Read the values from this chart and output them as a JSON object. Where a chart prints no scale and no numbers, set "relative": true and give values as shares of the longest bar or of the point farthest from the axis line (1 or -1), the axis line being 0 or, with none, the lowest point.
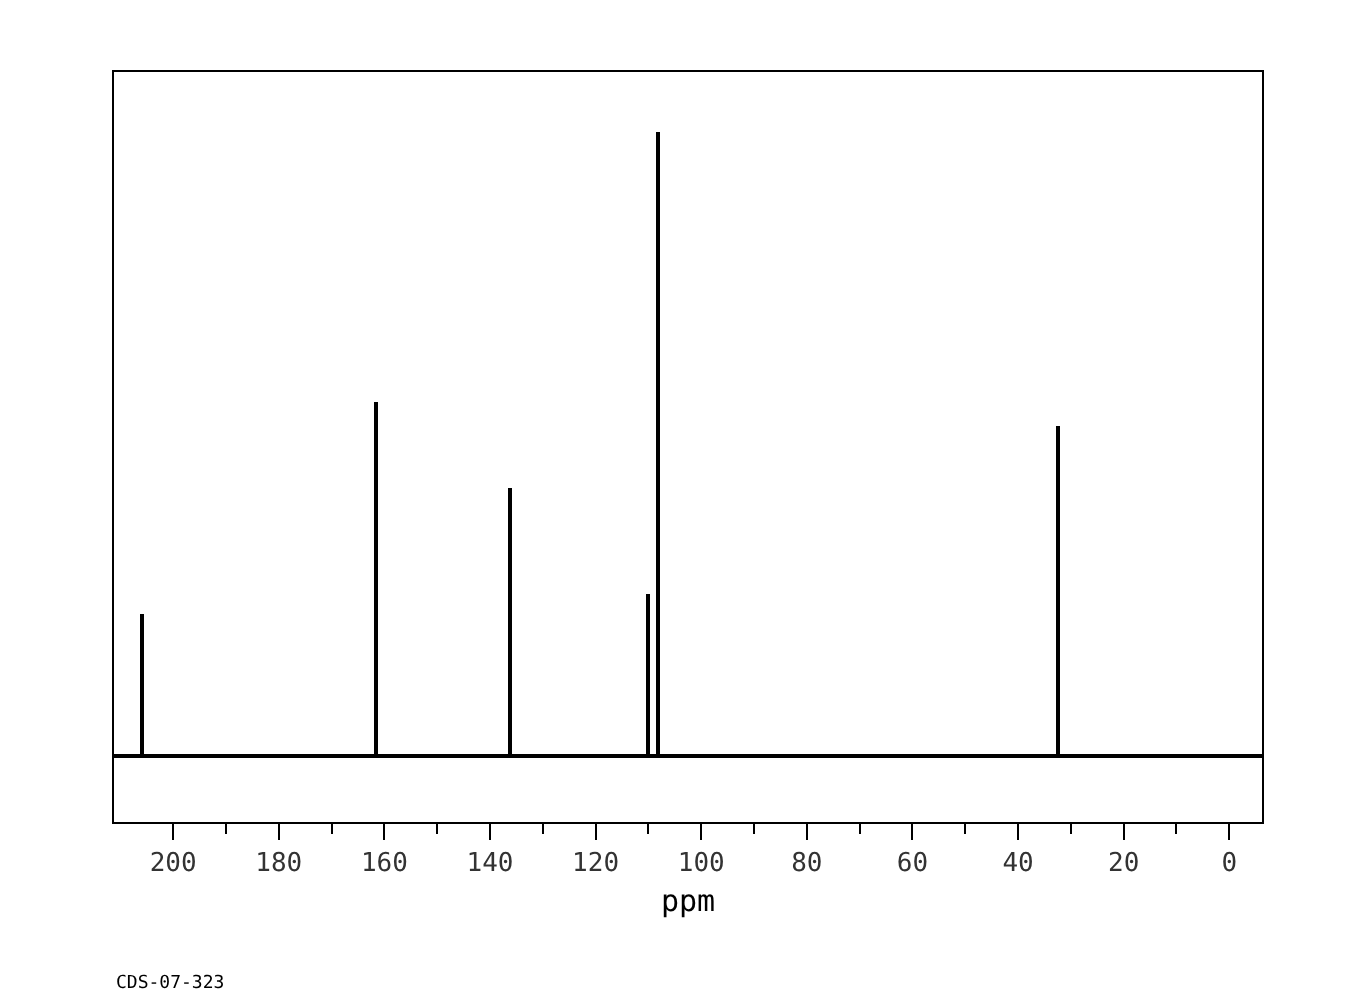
{
  "chart_data": {
    "type": "bar",
    "relative": true,
    "xlabel": "ppm",
    "annotations": [
      "CDS-07-323"
    ],
    "x": [
      205.8,
      161.5,
      136.0,
      110.0,
      108.1,
      32.3
    ],
    "values": [
      0.225,
      0.565,
      0.428,
      0.257,
      1,
      0.527
    ],
    "color": "#000000",
    "xlim": [
      211.2,
      -6.2
    ],
    "xticks": [
      200,
      180,
      160,
      140,
      120,
      100,
      80,
      60,
      40,
      20,
      0
    ]
  }
}
